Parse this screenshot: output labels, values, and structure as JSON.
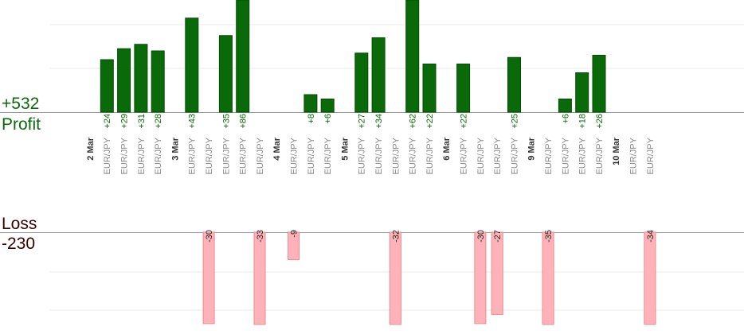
{
  "summary": {
    "profit_total": "+532",
    "profit_label": "Profit",
    "loss_label": "Loss",
    "loss_total": "-230"
  },
  "colors": {
    "profit_bar": "#0a6a0a",
    "profit_bar_dark": "#004f00",
    "loss_bar": "#ffb3b8",
    "loss_border": "#f08890",
    "profit_text": "#0a6a0a",
    "loss_title": "#3a0000",
    "date_text": "#333333",
    "symbol_text": "#888888",
    "grid": "#e8e8e8",
    "axis": "#999999"
  },
  "chart_data": {
    "type": "bar",
    "grid": true,
    "columns": [
      {
        "date": "2 Mar"
      },
      {
        "symbol": "EUR/JPY",
        "profit": 24
      },
      {
        "symbol": "EUR/JPY",
        "profit": 29
      },
      {
        "symbol": "EUR/JPY",
        "profit": 31
      },
      {
        "symbol": "EUR/JPY",
        "profit": 28
      },
      {
        "date": "3 Mar"
      },
      {
        "symbol": "EUR/JPY",
        "profit": 43
      },
      {
        "symbol": "EUR/JPY",
        "loss": -30
      },
      {
        "symbol": "EUR/JPY",
        "profit": 35
      },
      {
        "symbol": "EUR/JPY",
        "profit": 86
      },
      {
        "symbol": "EUR/JPY",
        "loss": -33
      },
      {
        "date": "4 Mar"
      },
      {
        "symbol": "EUR/JPY",
        "loss": -9
      },
      {
        "symbol": "EUR/JPY",
        "profit": 8
      },
      {
        "symbol": "EUR/JPY",
        "profit": 6
      },
      {
        "date": "5 Mar"
      },
      {
        "symbol": "EUR/JPY",
        "profit": 27
      },
      {
        "symbol": "EUR/JPY",
        "profit": 34
      },
      {
        "symbol": "EUR/JPY",
        "loss": -32
      },
      {
        "symbol": "EUR/JPY",
        "profit": 62
      },
      {
        "symbol": "EUR/JPY",
        "profit": 22
      },
      {
        "date": "6 Mar"
      },
      {
        "symbol": "EUR/JPY",
        "profit": 22
      },
      {
        "symbol": "EUR/JPY",
        "loss": -30
      },
      {
        "symbol": "EUR/JPY",
        "loss": -27
      },
      {
        "symbol": "EUR/JPY",
        "profit": 25
      },
      {
        "date": "9 Mar"
      },
      {
        "symbol": "EUR/JPY",
        "loss": -35
      },
      {
        "symbol": "EUR/JPY",
        "profit": 6
      },
      {
        "symbol": "EUR/JPY",
        "profit": 18
      },
      {
        "symbol": "EUR/JPY",
        "profit": 26
      },
      {
        "date": "10 Mar"
      },
      {
        "symbol": "EUR/JPY"
      },
      {
        "symbol": "EUR/JPY",
        "loss": -34
      }
    ]
  }
}
